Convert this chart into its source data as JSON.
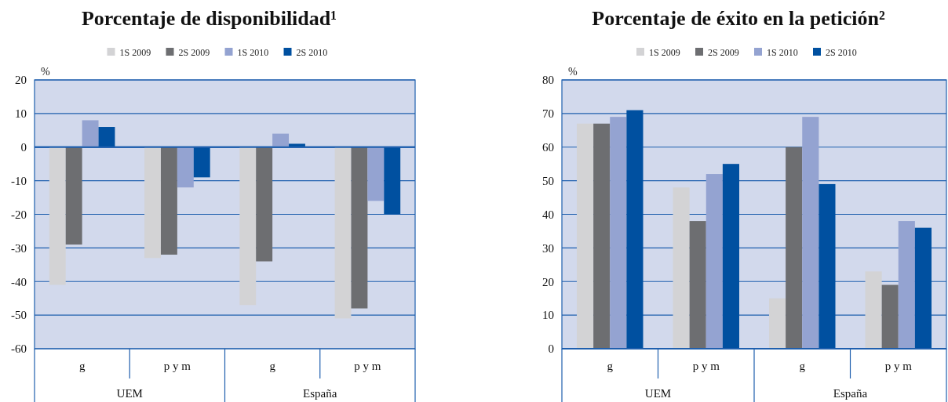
{
  "chart_data": [
    {
      "type": "bar",
      "title": "Porcentaje de disponibilidad¹",
      "ylabel": "%",
      "categories": [
        "g",
        "p y m",
        "g",
        "p y m"
      ],
      "annotations": [
        "UEM",
        "España"
      ],
      "series": [
        {
          "name": "1S 2009",
          "color": "#d3d3d5",
          "values": [
            -41,
            -33,
            -47,
            -51
          ]
        },
        {
          "name": "2S 2009",
          "color": "#6d6e71",
          "values": [
            -29,
            -32,
            -34,
            -48
          ]
        },
        {
          "name": "1S 2010",
          "color": "#94a3d1",
          "values": [
            8,
            -12,
            4,
            -16
          ]
        },
        {
          "name": "2S 2010",
          "color": "#0050a0",
          "values": [
            6,
            -9,
            1,
            -20
          ]
        }
      ],
      "ylim": [
        -60,
        20
      ],
      "yticks": [
        -60,
        -50,
        -40,
        -30,
        -20,
        -10,
        0,
        10,
        20
      ],
      "grid": "y",
      "legend": "top"
    },
    {
      "type": "bar",
      "title": "Porcentaje de éxito en la petición²",
      "ylabel": "%",
      "categories": [
        "g",
        "p y m",
        "g",
        "p y m"
      ],
      "annotations": [
        "UEM",
        "España"
      ],
      "series": [
        {
          "name": "1S 2009",
          "color": "#d3d3d5",
          "values": [
            67,
            48,
            15,
            23
          ]
        },
        {
          "name": "2S 2009",
          "color": "#6d6e71",
          "values": [
            67,
            38,
            60,
            19
          ]
        },
        {
          "name": "1S 2010",
          "color": "#94a3d1",
          "values": [
            69,
            52,
            69,
            38
          ]
        },
        {
          "name": "2S 2010",
          "color": "#0050a0",
          "values": [
            71,
            55,
            49,
            36
          ]
        }
      ],
      "ylim": [
        0,
        80
      ],
      "yticks": [
        0,
        10,
        20,
        30,
        40,
        50,
        60,
        70,
        80
      ],
      "grid": "y",
      "legend": "top"
    }
  ]
}
